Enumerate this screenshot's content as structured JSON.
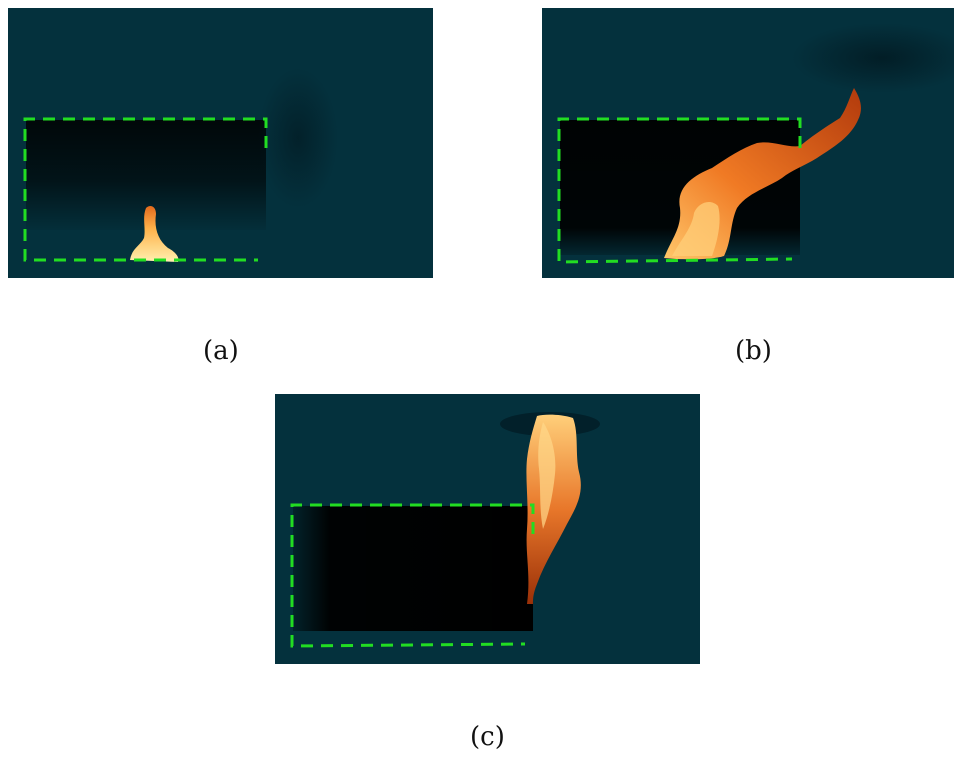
{
  "figure": {
    "panels": [
      {
        "id": "a",
        "label": "(a)"
      },
      {
        "id": "b",
        "label": "(b)"
      },
      {
        "id": "c",
        "label": "(c)"
      }
    ]
  },
  "colors": {
    "background": "#04313d",
    "boundary_dashes": "#22dd22",
    "shadow": "#000000",
    "flame_core": "#ffd27a",
    "flame_mid": "#f28a2c",
    "flame_edge": "#8a2a08"
  }
}
